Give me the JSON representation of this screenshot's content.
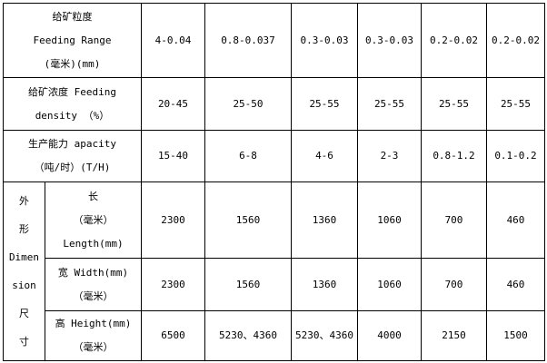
{
  "rows": [
    {
      "label": [
        "给矿粒度",
        "Feeding  Range",
        "(毫米)(mm)"
      ],
      "values": [
        "4-0.04",
        "0.8-0.037",
        "0.3-0.03",
        "0.3-0.03",
        "0.2-0.02",
        "0.2-0.02"
      ]
    },
    {
      "label": [
        "给矿浓度 Feeding",
        "density （%）"
      ],
      "values": [
        "20-45",
        "25-50",
        "25-55",
        "25-55",
        "25-55",
        "25-55"
      ]
    },
    {
      "label": [
        "生产能力 apacity",
        "（吨/时）(T/H)"
      ],
      "values": [
        "15-40",
        "6-8",
        "4-6",
        "2-3",
        "0.8-1.2",
        "0.1-0.2"
      ]
    }
  ],
  "dimension": {
    "group_label": [
      "外",
      "形",
      "Dimen",
      "sion",
      "尺",
      "寸"
    ],
    "rows": [
      {
        "label": [
          "长",
          "（毫米）",
          "Length(mm)"
        ],
        "values": [
          "2300",
          "1560",
          "1360",
          "1060",
          "700",
          "460"
        ]
      },
      {
        "label": [
          "宽 Width(mm)",
          "（毫米）"
        ],
        "values": [
          "2300",
          "1560",
          "1360",
          "1060",
          "700",
          "460"
        ]
      },
      {
        "label": [
          "高 Height(mm)",
          "（毫米）"
        ],
        "values": [
          "6500",
          "5230、4360",
          "5230、4360",
          "4000",
          "2150",
          "1500"
        ]
      }
    ]
  }
}
